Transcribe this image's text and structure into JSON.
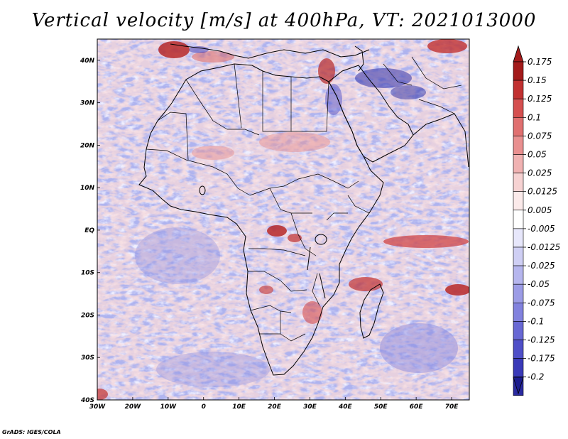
{
  "title": "Vertical velocity [m/s] at 400hPa, VT: 2021013000",
  "credit": "GrADS: IGES/COLA",
  "map": {
    "variable": "Vertical velocity",
    "units": "m/s",
    "level": "400hPa",
    "valid_time": "2021013000",
    "lat_range": [
      -40,
      45
    ],
    "lon_range": [
      -30,
      75
    ],
    "lat_ticks": [
      "40N",
      "30N",
      "20N",
      "10N",
      "EQ",
      "10S",
      "20S",
      "30S",
      "40S"
    ],
    "lon_ticks": [
      "30W",
      "20W",
      "10W",
      "0",
      "10E",
      "20E",
      "30E",
      "40E",
      "50E",
      "60E",
      "70E"
    ]
  },
  "colorbar": {
    "labels": [
      "0.175",
      "0.15",
      "0.125",
      "0.1",
      "0.075",
      "0.05",
      "0.025",
      "0.0125",
      "0.005",
      "-0.005",
      "-0.0125",
      "-0.025",
      "-0.05",
      "-0.075",
      "-0.1",
      "-0.125",
      "-0.175",
      "-0.2"
    ],
    "colors": [
      "#a31b1b",
      "#c13131",
      "#d55050",
      "#e07070",
      "#e99090",
      "#f0b2b2",
      "#f6d2d2",
      "#fbeaea",
      "#ffffff",
      "#e7e7fb",
      "#cfcff4",
      "#b6b6ee",
      "#9c9ce6",
      "#8282de",
      "#6868d4",
      "#4f4fc8",
      "#3a3ab8",
      "#2a2aa0"
    ],
    "max_color": "#a31b1b",
    "min_color": "#1c1c8f"
  }
}
